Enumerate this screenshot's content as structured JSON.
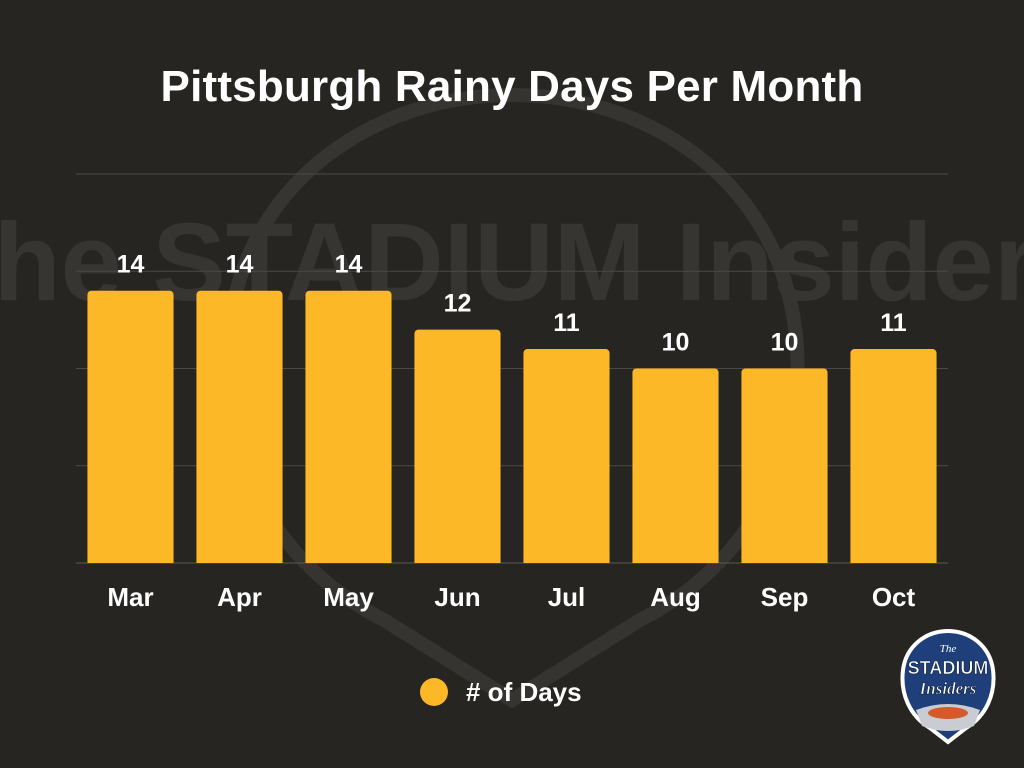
{
  "chart_data": {
    "type": "bar",
    "title": "Pittsburgh Rainy Days Per Month",
    "xlabel": "",
    "ylabel": "",
    "categories": [
      "Mar",
      "Apr",
      "May",
      "Jun",
      "Jul",
      "Aug",
      "Sep",
      "Oct"
    ],
    "series": [
      {
        "name": "# of Days",
        "values": [
          14,
          14,
          14,
          12,
          11,
          10,
          10,
          11
        ]
      }
    ],
    "ylim": [
      0,
      20
    ],
    "grid": true,
    "data_labels": true,
    "legend_position": "bottom",
    "colors": {
      "bar": "#FDB827",
      "grid": "#4a4944",
      "background": "#262521",
      "text": "#ffffff"
    }
  },
  "watermark": {
    "text": "The STADIUM Insiders"
  },
  "logo": {
    "text_top": "The",
    "text_main": "STADIUM",
    "text_script": "Insiders"
  }
}
